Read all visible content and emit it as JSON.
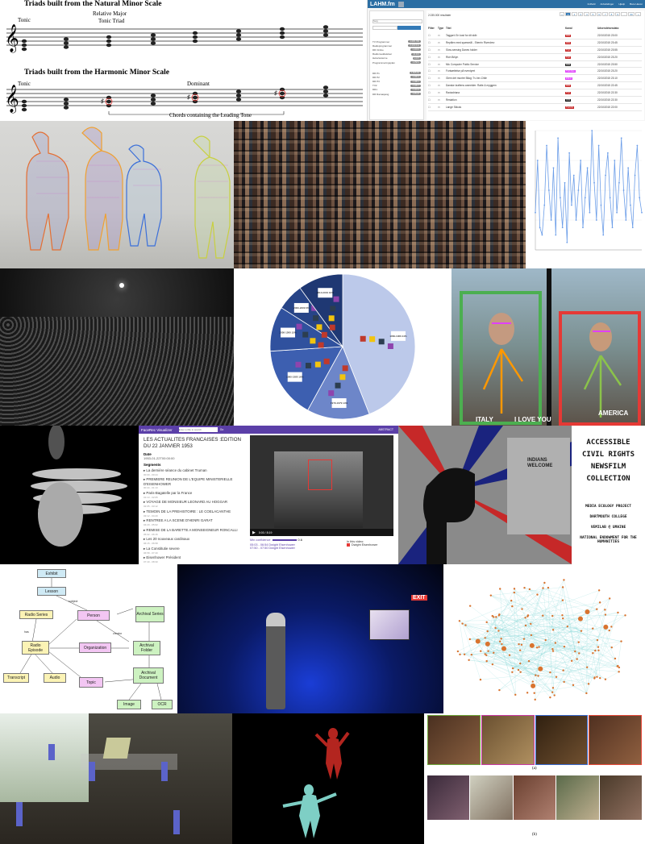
{
  "music": {
    "natural_title": "Triads built from the Natural Minor Scale",
    "natural_tonic": "Tonic",
    "relative_major": "Relative Major",
    "relative_triad": "Tonic Triad",
    "harmonic_title": "Triads built from the Harmonic Minor Scale",
    "harmonic_tonic": "Tonic",
    "dominant": "Dominant",
    "leading_tone_note": "Chords containing the Leading Tone"
  },
  "lahm": {
    "logo": "LAHM.fm",
    "search_placeholder": "Søg",
    "record_count": "2.035.000 resultater",
    "header_links": [
      "Indhold",
      "Anbefalinger",
      "Hjælp",
      "Bare Havon"
    ],
    "pages": [
      "«",
      "1",
      "2",
      "3",
      "4",
      "5",
      "6",
      "7",
      "8",
      "9",
      "...",
      "99",
      "»"
    ],
    "columns": [
      "Titel",
      "Kanal",
      "Udsendelsesdato"
    ],
    "rows": [
      {
        "title": "Taggart: En kost for dit skib",
        "channel": "DR1",
        "date": "22/10/2015 23:00"
      },
      {
        "title": "Reptilen med spørsmål - Sherrin Riverdrev",
        "channel": "DR1",
        "date": "22/10/2015 23:45"
      },
      {
        "title": "Slow-sensing Danes holder",
        "channel": "TV2",
        "date": "22/10/2015 23:55"
      },
      {
        "title": "Rich Brilyn",
        "channel": "TV2",
        "date": "22/10/2015 23:20"
      },
      {
        "title": "Mic Computer Public Service",
        "channel": "DR2",
        "date": "22/10/2015 23:50"
      },
      {
        "title": "Fortsættelse på eventyret",
        "channel": "TV2 Zulu",
        "date": "22/10/2015 23:20"
      },
      {
        "title": "Glem det muntre Bilag: Tv-her-Chile",
        "channel": "ZULU",
        "date": "22/10/2015 23:10"
      },
      {
        "title": "Danske kraftens anmelder: Ratte & myggem",
        "channel": "DR1",
        "date": "22/10/2015 22:45"
      },
      {
        "title": "Raviadriana",
        "channel": "TV2",
        "date": "22/10/2015 22:30"
      },
      {
        "title": "Restation",
        "channel": "DR3",
        "date": "22/10/2015 22:30"
      },
      {
        "title": "Lange Skkulu",
        "channel": "TV2 FS",
        "date": "22/10/2015 22:00"
      }
    ],
    "nav": [
      {
        "label": "TV Programmer",
        "count": "1.605.765"
      },
      {
        "label": "Radioprogrammer",
        "count": "6.203.541"
      },
      {
        "label": "DR Online",
        "count": "1.403.5"
      },
      {
        "label": "Radiomeddelelser",
        "count": "14.113"
      },
      {
        "label": "Hørertesterne",
        "count": "1.007"
      },
      {
        "label": "Programmeringsplan",
        "count": "1.058.9"
      },
      {
        "label": "DR P1",
        "count": "1.605.91"
      },
      {
        "label": "DR P2",
        "count": "1.290.3"
      },
      {
        "label": "DR P3",
        "count": "1.196.1"
      },
      {
        "label": "TV2",
        "count": "1.105.7"
      },
      {
        "label": "DR1",
        "count": "1.101.3"
      },
      {
        "label": "DR Ramasjang",
        "count": "1.051.8"
      }
    ],
    "colors": {
      "header": "#2b6ea3",
      "accent": "#337ab7"
    }
  },
  "line_chart": {
    "values": [
      5,
      12,
      3,
      2,
      6,
      14,
      8,
      4,
      11,
      2,
      15,
      7,
      3,
      9,
      1,
      13,
      6,
      10,
      4,
      8,
      12,
      3,
      7,
      11,
      5,
      16,
      9,
      4,
      14,
      6,
      2,
      10,
      13,
      7,
      3,
      12,
      5,
      9,
      15,
      8,
      4,
      11,
      6,
      3,
      10,
      14,
      7,
      5
    ],
    "color": "#6b9de8"
  },
  "pie_chart": {
    "slices": [
      {
        "label": "1960-1969 44%",
        "value": 44,
        "color": "#bcc9ea"
      },
      {
        "label": "1970-1979 14%",
        "value": 14,
        "color": "#6d86c9"
      },
      {
        "label": "1980-1989 16%",
        "value": 16,
        "color": "#3d5fb0"
      },
      {
        "label": "1990-1999 10%",
        "value": 10,
        "color": "#30519e"
      },
      {
        "label": "2000-2009 6%",
        "value": 6,
        "color": "#274487"
      },
      {
        "label": "2010-2019 10%",
        "value": 10,
        "color": "#1f3873"
      }
    ]
  },
  "pose_labels": {
    "left": "ITALY",
    "middle": "I LOVE YOU",
    "right": "AMERICA"
  },
  "news": {
    "app_title": "FaceRec Visualizer",
    "search_placeholder": "Enter a title to search",
    "search_button": "Go",
    "abstract": "ABSTRACT",
    "title": "LES ACTUALITES FRANCAISES :EDITION DU 22 JANVIER 1953",
    "date_label": "Date",
    "date_value": "1953-01-22T00:00:00",
    "segments_label": "Segments",
    "segments": [
      {
        "title": "La dernière séance du cabinet Truman",
        "time": "00:00 - 00:44"
      },
      {
        "title": "PREMIERE REUNION DE L'EQUIPE MINISTERIELLE D'EISENHOWER",
        "time": "00:44 - 01:13"
      },
      {
        "title": "Paris-Bagatelle par la France",
        "time": "01:13 - 02:05"
      },
      {
        "title": "VOYAGE DE MONSIEUR LEONARD AU HOGGAR",
        "time": "02:05 - 03:12"
      },
      {
        "title": "TEMOIN DE LA PREHISTOIRE : LE COELACANTHE",
        "time": "03:12 - 04:20"
      },
      {
        "title": "RENTREE A LA SCENE D'HENRI GARAT",
        "time": "04:20 - 05:02"
      },
      {
        "title": "REMISE DE LA BARETTE A MONSEIGNEUR RONCALLI",
        "time": "05:02 - 06:15"
      },
      {
        "title": "Les 20 nouveaux cardinaux",
        "time": "06:15 - 06:58"
      },
      {
        "title": "La Constitutie severe",
        "time": "06:58 - 07:40"
      },
      {
        "title": "Eisenhower Président",
        "time": "07:40 - 08:30"
      }
    ],
    "confidence_label": "Min confidence",
    "confidence_value": "0.6",
    "detections": [
      "05:03 - 06:54 Dwight Eisenhower",
      "07:50 - 07:50 Dwight Eisenhower"
    ],
    "in_video_label": "In this video:",
    "in_video_person": "Dwight Eisenhower",
    "video_time": "0:00 / 8:19"
  },
  "poster": {
    "lines": [
      "ACCESSIBLE",
      "CIVIL RIGHTS",
      "NEWSFILM",
      "COLLECTION"
    ],
    "credits": [
      "MEDIA ECOLOGY PROJECT",
      "DARTMOUTH COLLEGE",
      "VEMILAB @ UMAINE",
      "NATIONAL ENDOWMENT FOR THE HUMANITIES"
    ],
    "sign": "INDIANS WELCOME"
  },
  "diagram": {
    "nodes": {
      "exhibit": "Exhibit",
      "lesson": "Lesson",
      "radio_series": "Radio Series",
      "person": "Person",
      "archival_series": "Archival Series",
      "radio_episode": "Radio Episode",
      "organization": "Organization",
      "archival_folder": "Archival Folder",
      "transcript": "Transcript",
      "audio": "Audio",
      "topic": "Topic",
      "archival_document": "Archival Document",
      "image": "Image",
      "ocr": "OCR"
    },
    "edges": {
      "subject": "subject",
      "has": "has",
      "creator": "creator"
    }
  },
  "stage_sign": "EXIT",
  "paintings_caption_a": "(a)",
  "paintings_caption_b": "(b)"
}
